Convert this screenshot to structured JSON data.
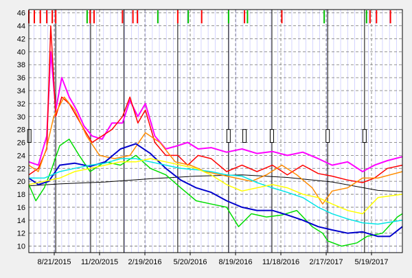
{
  "chart_data": {
    "type": "line",
    "title": "",
    "xlabel": "",
    "ylabel": "",
    "x_range": [
      "2015-07-01",
      "2017-07-20"
    ],
    "ylim": [
      9,
      46.5
    ],
    "y_ticks": [
      10,
      12,
      14,
      16,
      18,
      20,
      22,
      24,
      26,
      28,
      30,
      32,
      34,
      36,
      38,
      40,
      42,
      44,
      46
    ],
    "x_tick_labels": [
      "8/21/2015",
      "11/20/2015",
      "2/19/2016",
      "5/20/2016",
      "8/19/2016",
      "11/18/2016",
      "2/17/2017",
      "5/19/2017"
    ],
    "x_tick_dates": [
      "2015-08-21",
      "2015-11-20",
      "2016-02-19",
      "2016-05-20",
      "2016-08-19",
      "2016-11-18",
      "2017-02-17",
      "2017-05-19"
    ],
    "grid": true,
    "background": "#ffffff",
    "vertical_minor_grid_color": "#8080ff",
    "vertical_marker_lines": [
      "2015-08-24",
      "2015-11-02",
      "2016-01-08",
      "2016-04-25",
      "2016-08-05",
      "2016-10-31",
      "2017-02-20",
      "2017-05-05"
    ],
    "box_markers": [
      "2015-07-02",
      "2016-08-05",
      "2016-09-06",
      "2016-10-31",
      "2017-02-20",
      "2017-05-05"
    ],
    "top_flags": [
      {
        "date": "2015-07-01",
        "color": "#ff0000"
      },
      {
        "date": "2015-07-12",
        "color": "#ff0000"
      },
      {
        "date": "2015-07-24",
        "color": "#ff0000"
      },
      {
        "date": "2015-08-06",
        "color": "#ff0000"
      },
      {
        "date": "2015-08-17",
        "color": "#ff0000"
      },
      {
        "date": "2015-08-24",
        "color": "#ff0000"
      },
      {
        "date": "2015-10-26",
        "color": "#00c000"
      },
      {
        "date": "2015-11-01",
        "color": "#ff0000"
      },
      {
        "date": "2015-11-09",
        "color": "#ff0000"
      },
      {
        "date": "2016-01-05",
        "color": "#ff0000"
      },
      {
        "date": "2016-01-26",
        "color": "#ff0000"
      },
      {
        "date": "2016-02-04",
        "color": "#ff0000"
      },
      {
        "date": "2016-03-16",
        "color": "#00c000"
      },
      {
        "date": "2016-04-25",
        "color": "#ff0000"
      },
      {
        "date": "2016-05-16",
        "color": "#00c000"
      },
      {
        "date": "2016-06-12",
        "color": "#ff0000"
      },
      {
        "date": "2016-08-05",
        "color": "#00c000"
      },
      {
        "date": "2016-09-06",
        "color": "#ff0000"
      },
      {
        "date": "2016-09-12",
        "color": "#00c000"
      },
      {
        "date": "2016-11-20",
        "color": "#ff0000"
      },
      {
        "date": "2017-02-13",
        "color": "#00c000"
      },
      {
        "date": "2017-05-09",
        "color": "#00c000"
      },
      {
        "date": "2017-05-16",
        "color": "#ff0000"
      },
      {
        "date": "2017-05-29",
        "color": "#ff0000"
      },
      {
        "date": "2017-06-26",
        "color": "#ff0000"
      }
    ],
    "series": [
      {
        "color": "#000000",
        "width": 1,
        "x": [
          "2015-07-01",
          "2015-09-01",
          "2015-12-01",
          "2016-03-01",
          "2016-06-01",
          "2016-09-01",
          "2016-12-01",
          "2017-03-01",
          "2017-06-01",
          "2017-07-20"
        ],
        "y": [
          19.3,
          19.6,
          19.9,
          20.4,
          20.8,
          21.0,
          20.6,
          19.9,
          18.6,
          18.4
        ]
      },
      {
        "color": "#ff00ff",
        "width": 2,
        "x": [
          "2015-07-01",
          "2015-07-20",
          "2015-08-06",
          "2015-08-14",
          "2015-08-24",
          "2015-09-05",
          "2015-09-20",
          "2015-10-05",
          "2015-10-20",
          "2015-11-05",
          "2015-11-25",
          "2015-12-15",
          "2016-01-05",
          "2016-01-20",
          "2016-02-05",
          "2016-02-20",
          "2016-03-10",
          "2016-04-01",
          "2016-04-25",
          "2016-05-15",
          "2016-06-05",
          "2016-07-01",
          "2016-08-01",
          "2016-09-01",
          "2016-10-01",
          "2016-11-01",
          "2016-12-01",
          "2017-01-01",
          "2017-02-01",
          "2017-03-01",
          "2017-04-01",
          "2017-05-01",
          "2017-05-25",
          "2017-06-20",
          "2017-07-20"
        ],
        "y": [
          23,
          22.5,
          27,
          40,
          31,
          36,
          33,
          31,
          28.5,
          27,
          26.5,
          29,
          29,
          32.5,
          30,
          32,
          27,
          25,
          25.5,
          26,
          25,
          25.2,
          24.5,
          25,
          24.3,
          24.6,
          24,
          24.5,
          23.5,
          22.5,
          23,
          21.5,
          22.5,
          23.2,
          23.8
        ]
      },
      {
        "color": "#ff0000",
        "width": 1.5,
        "x": [
          "2015-07-01",
          "2015-07-20",
          "2015-08-06",
          "2015-08-14",
          "2015-08-24",
          "2015-09-05",
          "2015-09-20",
          "2015-10-05",
          "2015-10-20",
          "2015-11-05",
          "2015-11-25",
          "2015-12-15",
          "2016-01-05",
          "2016-01-20",
          "2016-02-05",
          "2016-02-20",
          "2016-03-10",
          "2016-04-01",
          "2016-04-25",
          "2016-05-15",
          "2016-06-05",
          "2016-07-01",
          "2016-08-01",
          "2016-09-01",
          "2016-10-01",
          "2016-11-01",
          "2016-12-01",
          "2017-01-01",
          "2017-02-01",
          "2017-03-01",
          "2017-04-01",
          "2017-05-01",
          "2017-05-25",
          "2017-06-20",
          "2017-07-20"
        ],
        "y": [
          21,
          22,
          25,
          44,
          30,
          33,
          32,
          30,
          28,
          26,
          27,
          28,
          30,
          33,
          29,
          31,
          26,
          24,
          24,
          22.5,
          24,
          23.5,
          21.5,
          22.5,
          21.5,
          22.5,
          21,
          22.5,
          21.2,
          20.8,
          20.2,
          19.8,
          20.5,
          22,
          22.5
        ]
      },
      {
        "color": "#ff8c00",
        "width": 1.5,
        "x": [
          "2015-07-01",
          "2015-07-20",
          "2015-08-05",
          "2015-08-20",
          "2015-09-10",
          "2015-10-01",
          "2015-10-25",
          "2015-11-20",
          "2015-12-20",
          "2016-01-20",
          "2016-02-20",
          "2016-03-20",
          "2016-04-20",
          "2016-05-20",
          "2016-06-20",
          "2016-07-20",
          "2016-08-20",
          "2016-09-20",
          "2016-10-20",
          "2016-11-20",
          "2016-12-20",
          "2017-01-20",
          "2017-02-10",
          "2017-03-01",
          "2017-04-01",
          "2017-05-01",
          "2017-06-01",
          "2017-07-20"
        ],
        "y": [
          22.5,
          21.5,
          25,
          30,
          33,
          31,
          27,
          24,
          23.5,
          24,
          27.5,
          26,
          23,
          22.5,
          21.5,
          21,
          20.5,
          20,
          21,
          22.5,
          21,
          19,
          16.5,
          18.5,
          19,
          20.5,
          20.5,
          21.5
        ]
      },
      {
        "color": "#00dd00",
        "width": 1.5,
        "x": [
          "2015-07-01",
          "2015-07-15",
          "2015-08-01",
          "2015-08-14",
          "2015-09-01",
          "2015-09-20",
          "2015-10-10",
          "2015-11-01",
          "2015-12-01",
          "2016-01-01",
          "2016-02-01",
          "2016-03-01",
          "2016-04-01",
          "2016-05-01",
          "2016-06-01",
          "2016-07-01",
          "2016-08-01",
          "2016-08-25",
          "2016-09-20",
          "2016-10-20",
          "2016-11-20",
          "2016-12-20",
          "2017-01-20",
          "2017-02-10",
          "2017-02-20",
          "2017-03-20",
          "2017-04-20",
          "2017-05-10",
          "2017-06-10",
          "2017-07-10",
          "2017-07-20"
        ],
        "y": [
          19.5,
          17,
          19,
          21.5,
          25.5,
          26.5,
          24,
          21.5,
          23,
          22.5,
          24,
          22,
          21,
          19,
          17,
          16.5,
          16,
          13,
          15,
          14.5,
          14.8,
          15.5,
          13,
          12,
          10.8,
          10,
          10.5,
          11.5,
          12,
          14.5,
          15
        ]
      },
      {
        "color": "#0000cc",
        "width": 2,
        "x": [
          "2015-07-01",
          "2015-07-20",
          "2015-08-10",
          "2015-09-01",
          "2015-10-01",
          "2015-11-01",
          "2015-12-01",
          "2016-01-01",
          "2016-02-01",
          "2016-03-01",
          "2016-04-01",
          "2016-05-01",
          "2016-06-01",
          "2016-07-01",
          "2016-08-01",
          "2016-09-01",
          "2016-10-01",
          "2016-11-01",
          "2016-12-01",
          "2017-01-01",
          "2017-02-01",
          "2017-03-01",
          "2017-04-01",
          "2017-05-01",
          "2017-06-01",
          "2017-06-25",
          "2017-07-20"
        ],
        "y": [
          20.5,
          19.5,
          20,
          22.5,
          22.8,
          22.3,
          23,
          25,
          25.8,
          24.3,
          22,
          20.2,
          19,
          18.3,
          17,
          16,
          15.5,
          15.5,
          14.8,
          14,
          13,
          12.5,
          12,
          12.2,
          11.5,
          11.5,
          13
        ]
      },
      {
        "color": "#00e5e5",
        "width": 1.5,
        "x": [
          "2015-07-01",
          "2015-08-01",
          "2015-09-01",
          "2015-10-01",
          "2015-11-01",
          "2015-12-01",
          "2016-01-01",
          "2016-02-01",
          "2016-03-01",
          "2016-04-01",
          "2016-05-01",
          "2016-06-01",
          "2016-07-01",
          "2016-08-01",
          "2016-09-01",
          "2016-10-01",
          "2016-11-01",
          "2016-12-01",
          "2017-01-01",
          "2017-02-01",
          "2017-03-01",
          "2017-04-01",
          "2017-05-01",
          "2017-06-01",
          "2017-07-20"
        ],
        "y": [
          20.5,
          20.5,
          21.5,
          22,
          22.5,
          22.8,
          23.5,
          23.5,
          23,
          22.5,
          22,
          21.8,
          21.5,
          21,
          20.8,
          19.8,
          19,
          18.3,
          17.5,
          16,
          15,
          14.2,
          13.6,
          13.4,
          14
        ]
      },
      {
        "color": "#ffff00",
        "width": 1.5,
        "x": [
          "2015-07-01",
          "2015-08-01",
          "2015-09-01",
          "2015-10-01",
          "2015-11-01",
          "2015-12-01",
          "2016-01-01",
          "2016-02-01",
          "2016-03-01",
          "2016-04-01",
          "2016-05-01",
          "2016-06-01",
          "2016-07-01",
          "2016-08-01",
          "2016-09-01",
          "2016-10-01",
          "2016-11-01",
          "2016-12-01",
          "2017-01-01",
          "2017-02-01",
          "2017-03-01",
          "2017-04-01",
          "2017-05-01",
          "2017-06-01",
          "2017-07-20"
        ],
        "y": [
          19.5,
          20,
          20.5,
          21.5,
          22,
          22.5,
          23,
          23,
          23.5,
          23,
          22.5,
          22,
          21,
          19.5,
          18.5,
          19,
          19.5,
          19,
          18,
          17.5,
          16.5,
          15.5,
          15,
          17.5,
          18
        ]
      }
    ]
  }
}
